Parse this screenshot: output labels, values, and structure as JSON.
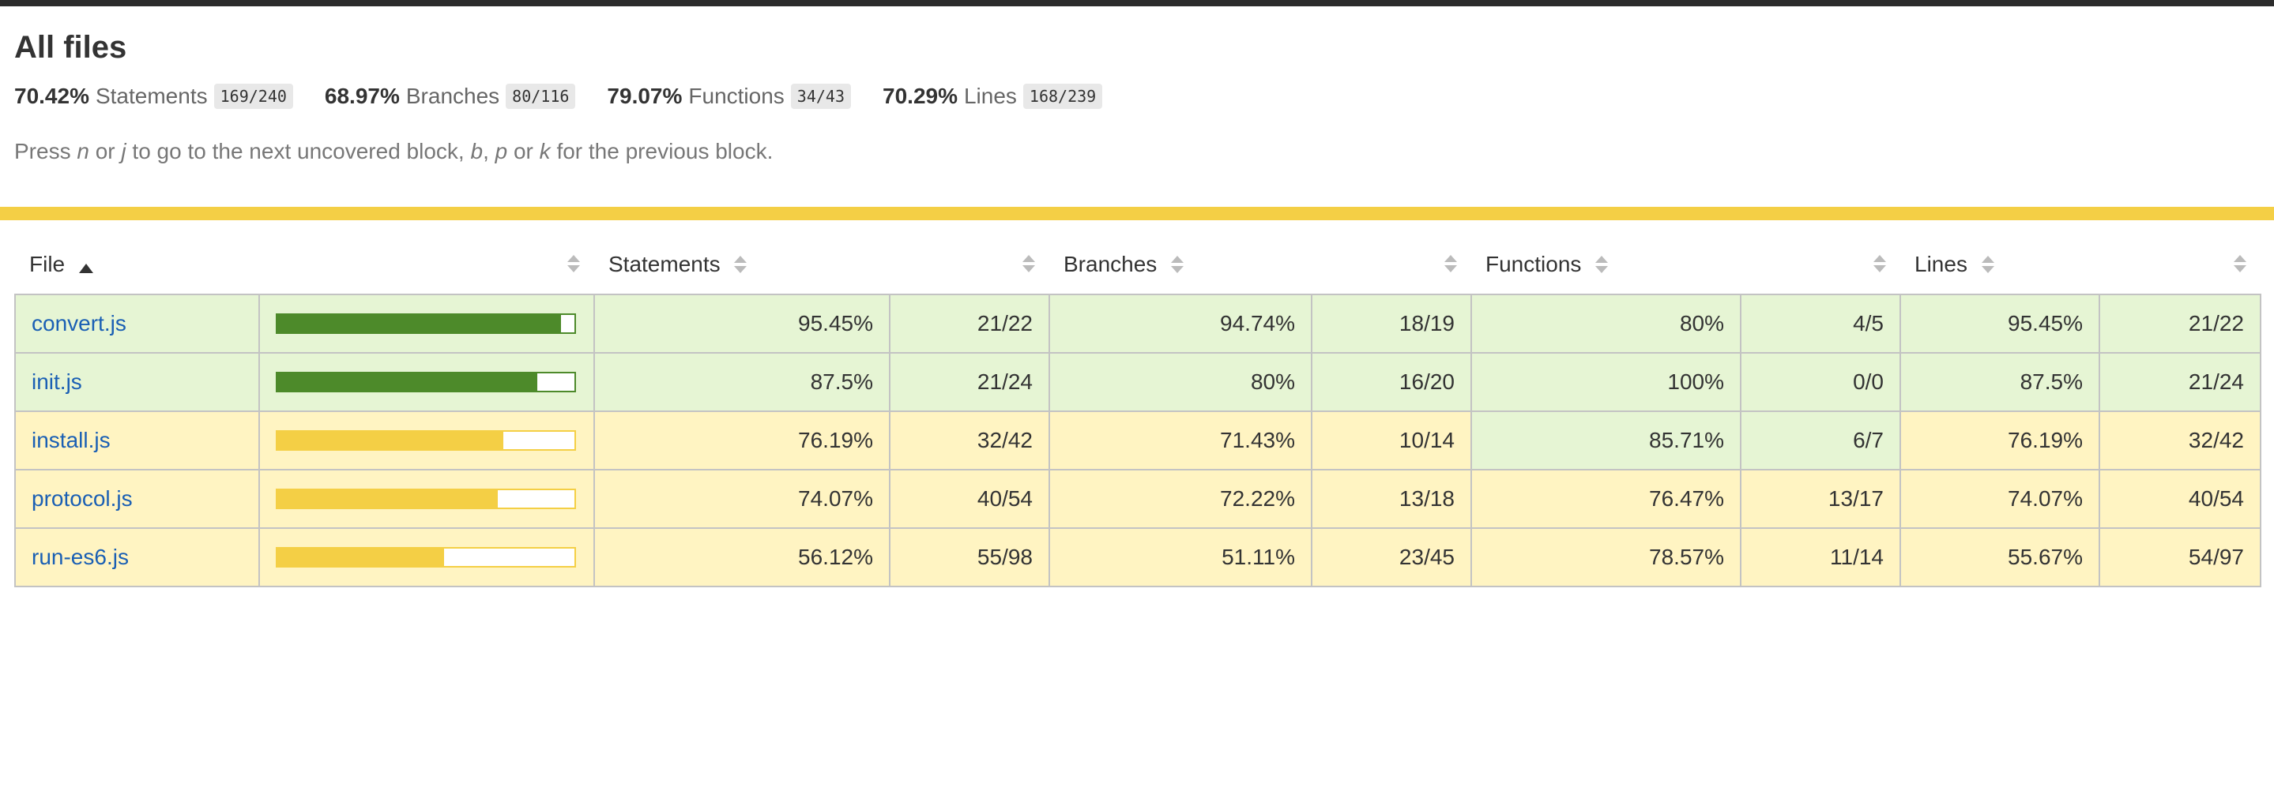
{
  "page": {
    "title": "All files",
    "help": {
      "prefix": "Press ",
      "key1": "n",
      "or1": " or ",
      "key2": "j",
      "middle": " to go to the next uncovered block, ",
      "key3": "b",
      "comma": ", ",
      "key4": "p",
      "or2": " or ",
      "key5": "k",
      "suffix": " for the previous block."
    }
  },
  "summary": [
    {
      "pct": "70.42%",
      "label": "Statements",
      "fraction": "169/240"
    },
    {
      "pct": "68.97%",
      "label": "Branches",
      "fraction": "80/116"
    },
    {
      "pct": "79.07%",
      "label": "Functions",
      "fraction": "34/43"
    },
    {
      "pct": "70.29%",
      "label": "Lines",
      "fraction": "168/239"
    }
  ],
  "colors": {
    "high_fill": "#4d8a2a",
    "high_bg": "#e6f5d4",
    "medium_fill": "#f4cf45",
    "medium_bg": "#fff4c2",
    "status_stripe": "#f4cf45",
    "link": "#1a5fb4"
  },
  "table": {
    "headers": {
      "file": "File",
      "statements": "Statements",
      "branches": "Branches",
      "functions": "Functions",
      "lines": "Lines"
    },
    "rows": [
      {
        "file": "convert.js",
        "level": "high",
        "bar_pct": 95.45,
        "stmt_pct": "95.45%",
        "stmt_frac": "21/22",
        "stmt_level": "high",
        "branch_pct": "94.74%",
        "branch_frac": "18/19",
        "branch_level": "high",
        "func_pct": "80%",
        "func_frac": "4/5",
        "func_level": "high",
        "line_pct": "95.45%",
        "line_frac": "21/22",
        "line_level": "high"
      },
      {
        "file": "init.js",
        "level": "high",
        "bar_pct": 87.5,
        "stmt_pct": "87.5%",
        "stmt_frac": "21/24",
        "stmt_level": "high",
        "branch_pct": "80%",
        "branch_frac": "16/20",
        "branch_level": "high",
        "func_pct": "100%",
        "func_frac": "0/0",
        "func_level": "high",
        "line_pct": "87.5%",
        "line_frac": "21/24",
        "line_level": "high"
      },
      {
        "file": "install.js",
        "level": "medium",
        "bar_pct": 76.19,
        "stmt_pct": "76.19%",
        "stmt_frac": "32/42",
        "stmt_level": "medium",
        "branch_pct": "71.43%",
        "branch_frac": "10/14",
        "branch_level": "medium",
        "func_pct": "85.71%",
        "func_frac": "6/7",
        "func_level": "high",
        "line_pct": "76.19%",
        "line_frac": "32/42",
        "line_level": "medium"
      },
      {
        "file": "protocol.js",
        "level": "medium",
        "bar_pct": 74.07,
        "stmt_pct": "74.07%",
        "stmt_frac": "40/54",
        "stmt_level": "medium",
        "branch_pct": "72.22%",
        "branch_frac": "13/18",
        "branch_level": "medium",
        "func_pct": "76.47%",
        "func_frac": "13/17",
        "func_level": "medium",
        "line_pct": "74.07%",
        "line_frac": "40/54",
        "line_level": "medium"
      },
      {
        "file": "run-es6.js",
        "level": "medium",
        "bar_pct": 56.12,
        "stmt_pct": "56.12%",
        "stmt_frac": "55/98",
        "stmt_level": "medium",
        "branch_pct": "51.11%",
        "branch_frac": "23/45",
        "branch_level": "medium",
        "func_pct": "78.57%",
        "func_frac": "11/14",
        "func_level": "medium",
        "line_pct": "55.67%",
        "line_frac": "54/97",
        "line_level": "medium"
      }
    ]
  }
}
